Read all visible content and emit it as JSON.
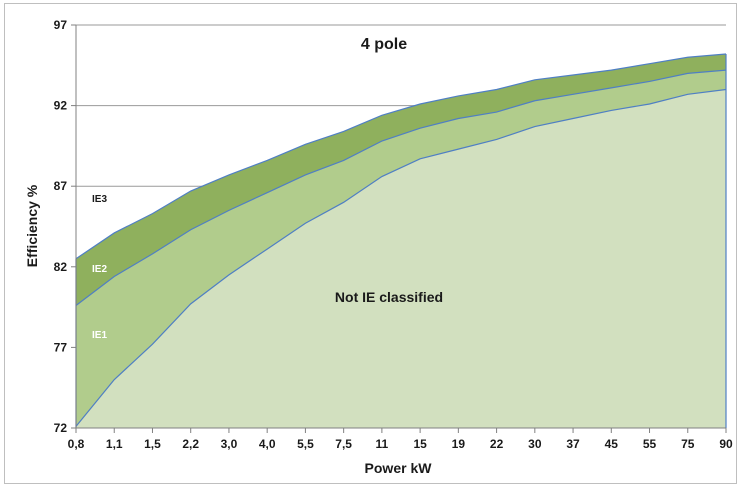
{
  "chart_data": {
    "type": "area",
    "title": "4 pole",
    "xlabel": "Power kW",
    "ylabel": "Efficiency %",
    "ylim": [
      72,
      97
    ],
    "yticks": [
      "72",
      "77",
      "82",
      "87",
      "92",
      "97"
    ],
    "grid": "horizontal",
    "categories": [
      "0,8",
      "1,1",
      "1,5",
      "2,2",
      "3,0",
      "4,0",
      "5,5",
      "7,5",
      "11",
      "15",
      "19",
      "22",
      "30",
      "37",
      "45",
      "55",
      "75",
      "90"
    ],
    "series": [
      {
        "name": "IE1",
        "values": [
          72.1,
          75.0,
          77.2,
          79.7,
          81.5,
          83.1,
          84.7,
          86.0,
          87.6,
          88.7,
          89.3,
          89.9,
          90.7,
          91.2,
          91.7,
          92.1,
          92.7,
          93.0
        ]
      },
      {
        "name": "IE2",
        "values": [
          79.6,
          81.4,
          82.8,
          84.3,
          85.5,
          86.6,
          87.7,
          88.6,
          89.8,
          90.6,
          91.2,
          91.6,
          92.3,
          92.7,
          93.1,
          93.5,
          94.0,
          94.2
        ]
      },
      {
        "name": "IE3",
        "values": [
          82.5,
          84.1,
          85.3,
          86.7,
          87.7,
          88.6,
          89.6,
          90.4,
          91.4,
          92.1,
          92.6,
          93.0,
          93.6,
          93.9,
          94.2,
          94.6,
          95.0,
          95.2
        ]
      }
    ],
    "annotations": [
      {
        "text": "Not IE classified",
        "key": "not_ie"
      },
      {
        "text": "IE1",
        "key": "IE1"
      },
      {
        "text": "IE2",
        "key": "IE2"
      },
      {
        "text": "IE3",
        "key": "IE3"
      }
    ],
    "colors": {
      "not_ie": "#d2e0bf",
      "IE1": "#b1cc8c",
      "IE2": "#8fb05d",
      "IE3": "#769f45",
      "line": "#4f7fc4",
      "grid": "#9a9a9a",
      "axis": "#808080"
    }
  }
}
